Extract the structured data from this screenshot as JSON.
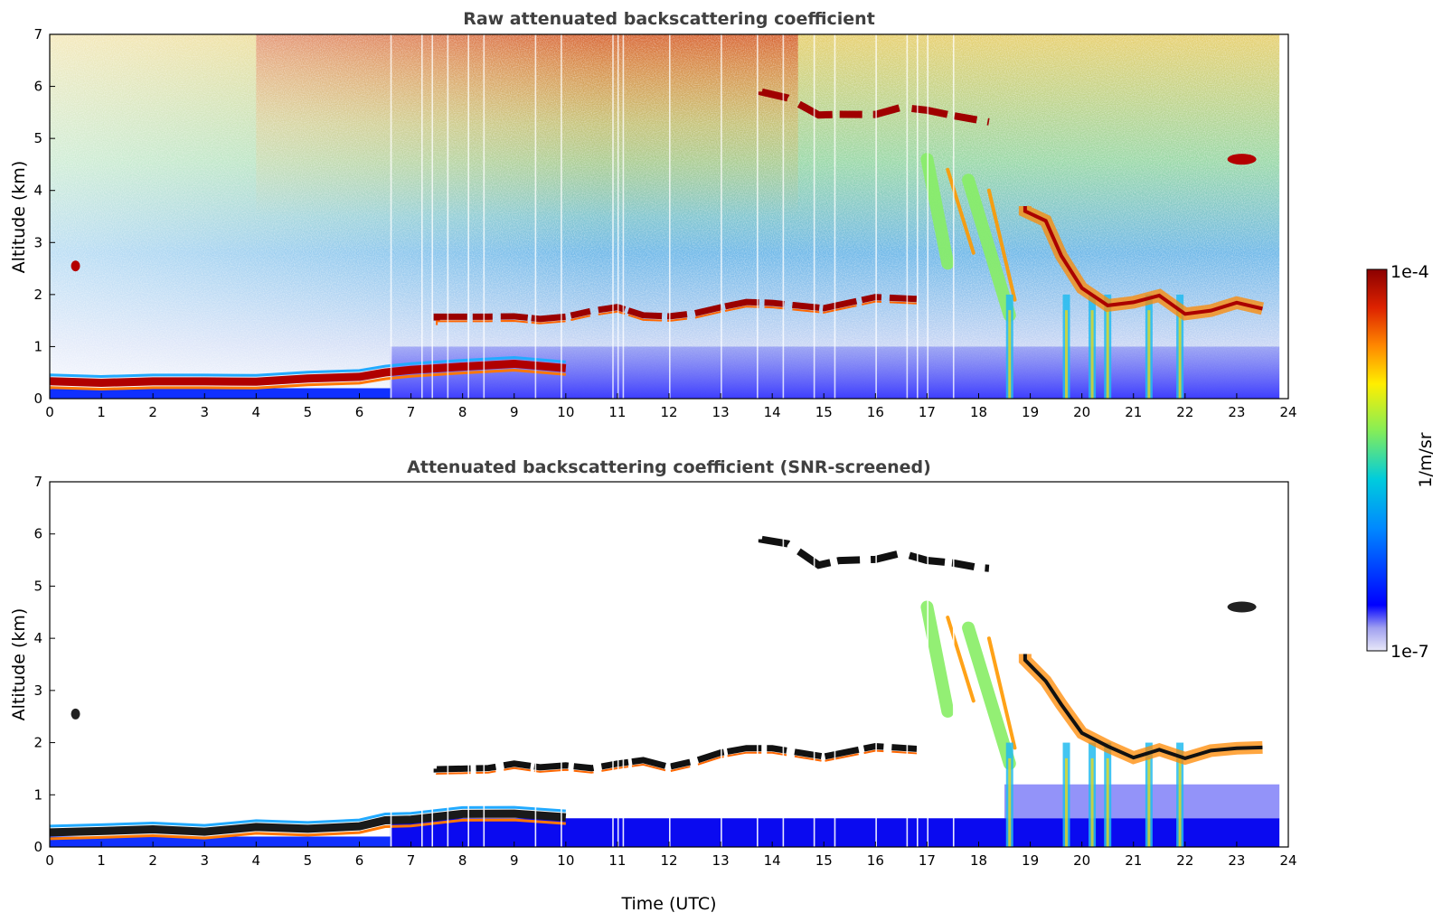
{
  "chart_data": [
    {
      "type": "heatmap",
      "title": "Raw attenuated backscattering coefficient",
      "xlabel": "",
      "ylabel": "Altitude (km)",
      "xlim": [
        0,
        24
      ],
      "ylim": [
        0,
        7
      ],
      "xticks": [
        "0",
        "1",
        "2",
        "3",
        "4",
        "5",
        "6",
        "7",
        "8",
        "9",
        "10",
        "11",
        "12",
        "13",
        "14",
        "15",
        "16",
        "17",
        "18",
        "19",
        "20",
        "21",
        "22",
        "23",
        "24"
      ],
      "yticks": [
        "0",
        "1",
        "2",
        "3",
        "4",
        "5",
        "6",
        "7"
      ],
      "features": {
        "boundary_layer": [
          [
            0,
            0.3
          ],
          [
            1,
            0.3
          ],
          [
            2,
            0.32
          ],
          [
            3,
            0.3
          ],
          [
            4,
            0.35
          ],
          [
            5,
            0.38
          ],
          [
            6,
            0.42
          ],
          [
            6.5,
            0.5
          ],
          [
            7,
            0.55
          ],
          [
            8,
            0.6
          ],
          [
            9,
            0.65
          ],
          [
            10,
            0.6
          ]
        ],
        "low_cloud": [
          [
            7.5,
            1.5
          ],
          [
            8.5,
            1.55
          ],
          [
            9,
            1.6
          ],
          [
            9.5,
            1.6
          ],
          [
            10,
            1.55
          ],
          [
            10.5,
            1.6
          ],
          [
            11,
            1.7
          ],
          [
            11.5,
            1.65
          ],
          [
            12,
            1.6
          ],
          [
            12.5,
            1.65
          ],
          [
            13,
            1.75
          ],
          [
            13.5,
            1.8
          ],
          [
            14,
            1.8
          ],
          [
            15,
            1.8
          ],
          [
            16,
            1.85
          ],
          [
            16.8,
            1.85
          ]
        ],
        "mid_cloud": [
          [
            13.8,
            5.9
          ],
          [
            14.3,
            5.8
          ],
          [
            14.9,
            5.4
          ],
          [
            15.3,
            5.45
          ],
          [
            16,
            5.5
          ],
          [
            16.5,
            5.6
          ],
          [
            17,
            5.5
          ],
          [
            17.5,
            5.45
          ],
          [
            18,
            5.4
          ],
          [
            18.2,
            5.3
          ]
        ],
        "precip_shafts": [
          18.6,
          19.7,
          20.2,
          20.5,
          21.3,
          21.9
        ],
        "late_cloud": [
          [
            18.9,
            3.7
          ],
          [
            19.3,
            3.3
          ],
          [
            19.6,
            2.8
          ],
          [
            20,
            2.2
          ],
          [
            20.5,
            1.9
          ],
          [
            21,
            1.8
          ],
          [
            21.5,
            1.9
          ],
          [
            22,
            1.7
          ],
          [
            22.5,
            1.8
          ],
          [
            23,
            1.9
          ],
          [
            23.5,
            1.85
          ]
        ],
        "isolated_cloud": [
          [
            0.5,
            2.55
          ],
          [
            23.1,
            4.6
          ]
        ]
      },
      "screened": false
    },
    {
      "type": "heatmap",
      "title": "Attenuated backscattering coefficient (SNR-screened)",
      "xlabel": "Time (UTC)",
      "ylabel": "Altitude (km)",
      "xlim": [
        0,
        24
      ],
      "ylim": [
        0,
        7
      ],
      "xticks": [
        "0",
        "1",
        "2",
        "3",
        "4",
        "5",
        "6",
        "7",
        "8",
        "9",
        "10",
        "11",
        "12",
        "13",
        "14",
        "15",
        "16",
        "17",
        "18",
        "19",
        "20",
        "21",
        "22",
        "23",
        "24"
      ],
      "yticks": [
        "0",
        "1",
        "2",
        "3",
        "4",
        "5",
        "6",
        "7"
      ],
      "screened": true
    }
  ],
  "colorbar": {
    "label": "1/m/sr",
    "max_label": "1e-4",
    "min_label": "1e-7",
    "scale": "log",
    "colormap": "jet",
    "colors": [
      "#e8e8f8",
      "#0000ff",
      "#00aaff",
      "#22ddcc",
      "#88ee55",
      "#ffee00",
      "#ff8800",
      "#dd2200",
      "#8b0000"
    ]
  }
}
